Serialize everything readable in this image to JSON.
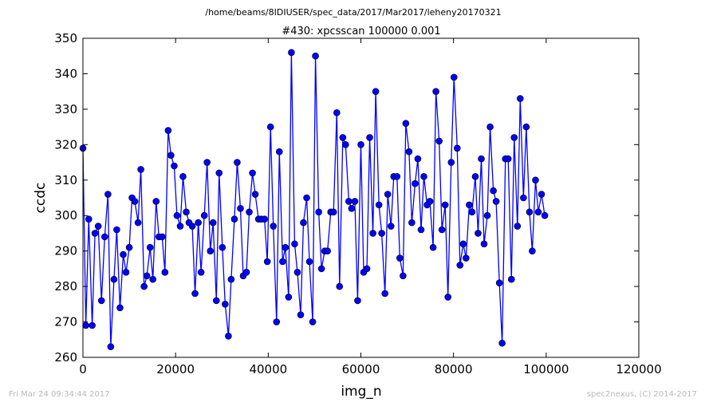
{
  "suptitle": "/home/beams/8IDIUSER/spec_data/2017/Mar2017/leheny20170321",
  "footer": {
    "timestamp": "Fri Mar 24 09:34:44 2017",
    "credit": "spec2nexus, (C) 2014-2017"
  },
  "chart_data": {
    "type": "line",
    "title": "#430: xpcsscan 100000 0.001",
    "xlabel": "img_n",
    "ylabel": "ccdc",
    "xlim": [
      0,
      120000
    ],
    "ylim": [
      260,
      350
    ],
    "xticks": [
      0,
      20000,
      40000,
      60000,
      80000,
      100000,
      120000
    ],
    "yticks": [
      260,
      270,
      280,
      290,
      300,
      310,
      320,
      330,
      340,
      350
    ],
    "grid": false,
    "legend": "none",
    "color": "#0000ff",
    "marker": "circle",
    "series": [
      {
        "x": [
          0,
          625,
          1250,
          2000,
          2600,
          3300,
          4000,
          4700,
          5400,
          6000,
          6700,
          7300,
          8000,
          8700,
          9300,
          10000,
          10600,
          11200,
          11900,
          12500,
          13200,
          13800,
          14500,
          15100,
          15800,
          16400,
          17100,
          17700,
          18400,
          19000,
          19700,
          20300,
          21000,
          21600,
          22300,
          22900,
          23600,
          24200,
          24900,
          25500,
          26200,
          26800,
          27500,
          28100,
          28800,
          29400,
          30100,
          30700,
          31400,
          32000,
          32700,
          33300,
          34000,
          34600,
          35300,
          35900,
          36600,
          37200,
          37900,
          38500,
          39200,
          39800,
          40500,
          41100,
          41800,
          42400,
          43100,
          43700,
          44400,
          45000,
          45700,
          46300,
          47000,
          47600,
          48300,
          48900,
          49600,
          50200,
          50900,
          51500,
          52200,
          52800,
          53500,
          54100,
          54800,
          55400,
          56100,
          56700,
          57400,
          58000,
          58700,
          59300,
          60000,
          60600,
          61300,
          61900,
          62600,
          63200,
          63900,
          64500,
          65200,
          65800,
          66500,
          67100,
          67800,
          68400,
          69100,
          69700,
          70400,
          71000,
          71700,
          72300,
          73000,
          73600,
          74300,
          74900,
          75600,
          76200,
          76900,
          77500,
          78200,
          78800,
          79500,
          80100,
          80800,
          81400,
          82100,
          82700,
          83400,
          84000,
          84700,
          85300,
          86000,
          86600,
          87300,
          87900,
          88600,
          89200,
          89900,
          90500,
          91200,
          91800,
          92500,
          93100,
          93800,
          94400,
          95100,
          95700,
          96400,
          97000,
          97700,
          98300,
          99000,
          99700
        ],
        "y": [
          319,
          269,
          299,
          269,
          295,
          297,
          276,
          294,
          306,
          263,
          282,
          296,
          274,
          289,
          284,
          291,
          305,
          304,
          298,
          313,
          280,
          283,
          291,
          282,
          304,
          294,
          294,
          284,
          324,
          317,
          314,
          300,
          297,
          311,
          301,
          298,
          297,
          278,
          298,
          284,
          300,
          315,
          290,
          298,
          276,
          312,
          291,
          275,
          266,
          282,
          299,
          315,
          302,
          283,
          284,
          301,
          312,
          306,
          299,
          299,
          299,
          287,
          325,
          297,
          270,
          318,
          287,
          291,
          277,
          346,
          292,
          284,
          272,
          298,
          305,
          287,
          270,
          345,
          301,
          285,
          290,
          290,
          301,
          301,
          329,
          280,
          322,
          320,
          304,
          302,
          304,
          276,
          320,
          284,
          285,
          322,
          295,
          335,
          303,
          295,
          278,
          306,
          297,
          311,
          311,
          288,
          283,
          326,
          318,
          298,
          309,
          316,
          296,
          311,
          303,
          304,
          291,
          335,
          321,
          296,
          303,
          277,
          315,
          339,
          319,
          286,
          292,
          288,
          303,
          301,
          311,
          295,
          316,
          292,
          300,
          325,
          307,
          304,
          281,
          264,
          316,
          316,
          282,
          322,
          297,
          333,
          305,
          325,
          301,
          290,
          310,
          301,
          306,
          300
        ]
      }
    ]
  }
}
